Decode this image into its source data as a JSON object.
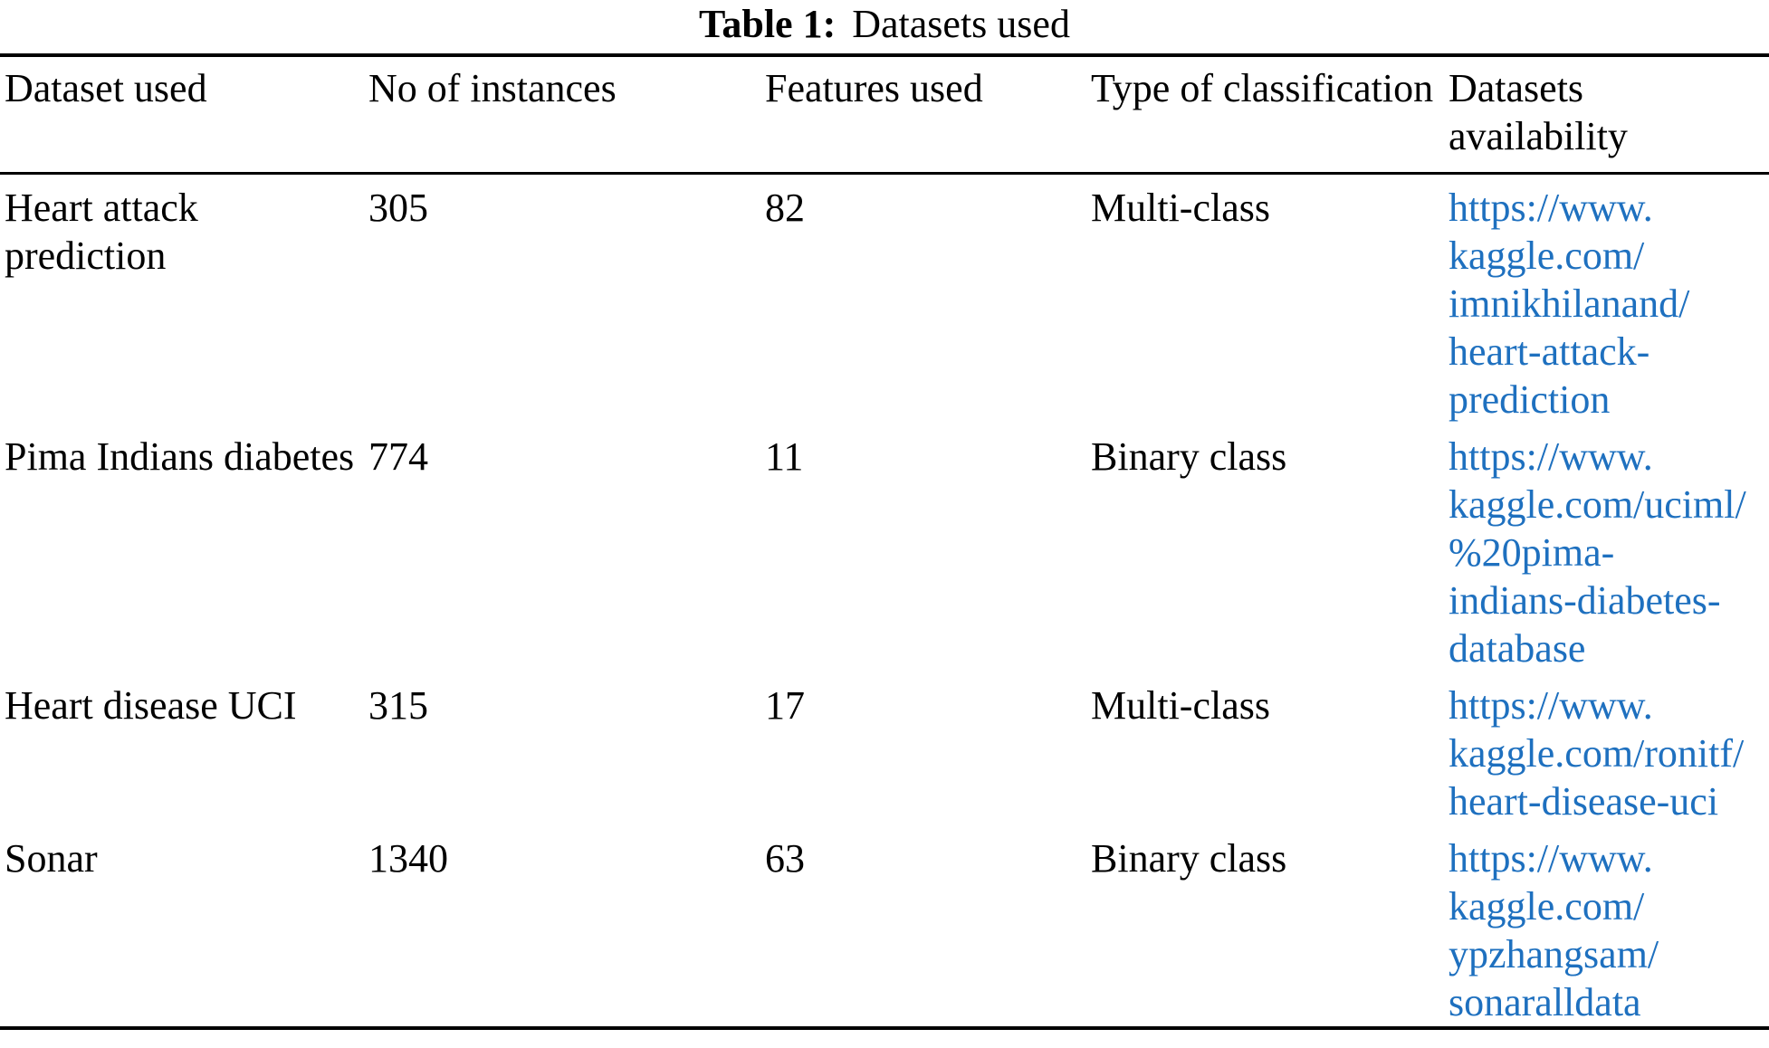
{
  "title": {
    "label": "Table 1:",
    "text": "Datasets used"
  },
  "table": {
    "columns": [
      "Dataset used",
      "No of instances",
      "Features used",
      "Type of classification",
      "Datasets availability"
    ],
    "rows": [
      {
        "dataset": "Heart attack prediction",
        "instances": "305",
        "features": "82",
        "classification": "Multi-class",
        "url": "https://www.kaggle.com/imnikhilanand/heart-attack-prediction",
        "url_lines": [
          "https://www.",
          "kaggle.com/",
          "imnikhilanand/",
          "heart-attack-",
          "prediction"
        ]
      },
      {
        "dataset": "Pima Indians diabetes",
        "instances": "774",
        "features": "11",
        "classification": "Binary class",
        "url": "https://www.kaggle.com/uciml/%20pima-indians-diabetes-database",
        "url_lines": [
          "https://www.",
          "kaggle.com/uciml/",
          "%20pima-",
          "indians-diabetes-",
          "database"
        ]
      },
      {
        "dataset": "Heart disease UCI",
        "instances": "315",
        "features": "17",
        "classification": "Multi-class",
        "url": "https://www.kaggle.com/ronitf/heart-disease-uci",
        "url_lines": [
          "https://www.",
          "kaggle.com/ronitf/",
          "heart-disease-uci"
        ]
      },
      {
        "dataset": "Sonar",
        "instances": "1340",
        "features": "63",
        "classification": "Binary class",
        "url": "https://www.kaggle.com/ypzhangsam/sonaralldata",
        "url_lines": [
          "https://www.",
          "kaggle.com/",
          "ypzhangsam/",
          "sonaralldata"
        ]
      }
    ]
  },
  "colors": {
    "text": "#000000",
    "rule": "#000000",
    "link": "#1e70bf"
  }
}
